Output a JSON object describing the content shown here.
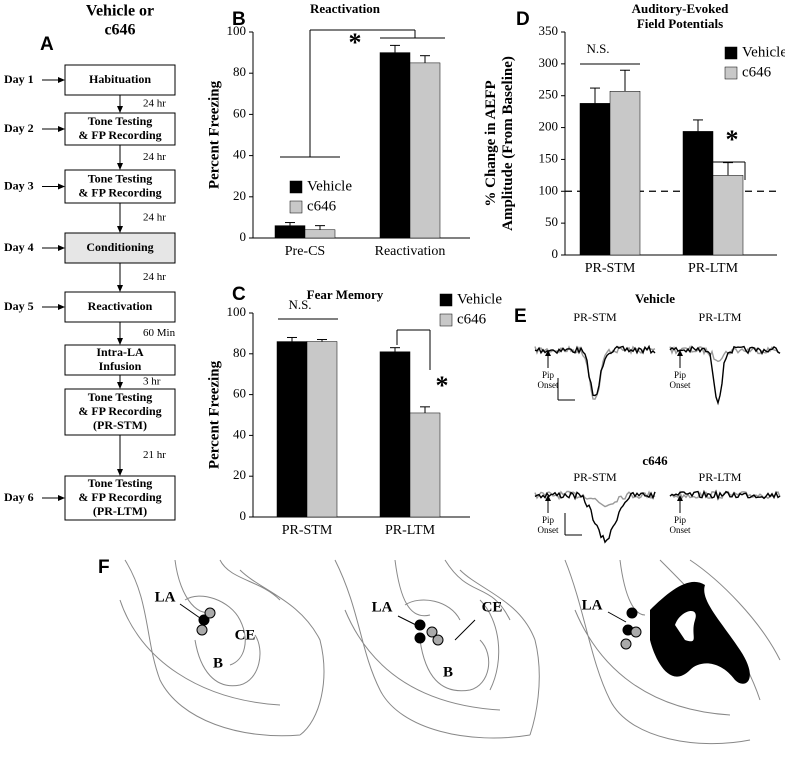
{
  "chart_data": [
    {
      "type": "bar",
      "letter": "B",
      "title": [
        "Reactivation"
      ],
      "y_label": [
        "Percent Freezing"
      ],
      "categories": [
        "Pre-CS",
        "Reactivation"
      ],
      "series": [
        {
          "name": "Vehicle",
          "color": "#000000",
          "values": [
            6,
            90
          ],
          "errors": [
            1.5,
            3.5
          ]
        },
        {
          "name": "c646",
          "color": "#c8c8c8",
          "values": [
            4,
            85
          ],
          "errors": [
            2,
            3.5
          ]
        }
      ],
      "ylim": [
        0,
        100
      ],
      "yticks": [
        0,
        20,
        40,
        60,
        80,
        100
      ],
      "annotations": [
        "*"
      ]
    },
    {
      "type": "bar",
      "letter": "C",
      "title": [
        "Fear Memory"
      ],
      "y_label": [
        "Percent Freezing"
      ],
      "categories": [
        "PR-STM",
        "PR-LTM"
      ],
      "series": [
        {
          "name": "Vehicle",
          "color": "#000000",
          "values": [
            86,
            81
          ],
          "errors": [
            2,
            2
          ]
        },
        {
          "name": "c646",
          "color": "#c8c8c8",
          "values": [
            86,
            51
          ],
          "errors": [
            1,
            3
          ]
        }
      ],
      "ylim": [
        0,
        100
      ],
      "yticks": [
        0,
        20,
        40,
        60,
        80,
        100
      ],
      "annotations": [
        "N.S.",
        "*"
      ]
    },
    {
      "type": "bar",
      "letter": "D",
      "title": [
        "Auditory-Evoked",
        "Field Potentials"
      ],
      "y_label": [
        "% Change in AEFP",
        "Amplitude (From Baseline)"
      ],
      "categories": [
        "PR-STM",
        "PR-LTM"
      ],
      "series": [
        {
          "name": "Vehicle",
          "color": "#000000",
          "values": [
            238,
            194
          ],
          "errors": [
            24,
            18
          ]
        },
        {
          "name": "c646",
          "color": "#c8c8c8",
          "values": [
            257,
            125
          ],
          "errors": [
            33,
            20
          ]
        }
      ],
      "ylim": [
        0,
        350
      ],
      "yticks": [
        0,
        50,
        100,
        150,
        200,
        250,
        300,
        350
      ],
      "reference_line": 100,
      "annotations": [
        "N.S.",
        "*"
      ]
    }
  ],
  "flowchart": {
    "letter": "A",
    "title": [
      "Vehicle or",
      "c646"
    ],
    "steps": [
      {
        "day": "Day 1",
        "lines": [
          "Habituation"
        ]
      },
      {
        "day": "Day 2",
        "lines": [
          "Tone Testing",
          "& FP Recording"
        ]
      },
      {
        "day": "Day 3",
        "lines": [
          "Tone Testing",
          "& FP Recording"
        ]
      },
      {
        "day": "Day 4",
        "lines": [
          "Conditioning"
        ]
      },
      {
        "day": "Day 5",
        "lines": [
          "Reactivation"
        ]
      },
      {
        "lines": [
          "Intra-LA",
          "Infusion"
        ]
      },
      {
        "lines": [
          "Tone Testing",
          "& FP Recording",
          "(PR-STM)"
        ]
      },
      {
        "day": "Day 6",
        "lines": [
          "Tone Testing",
          "& FP Recording",
          "(PR-LTM)"
        ]
      }
    ],
    "intervals": [
      "24 hr",
      "24 hr",
      "24 hr",
      "24 hr",
      "60 Min",
      "3 hr",
      "21 hr"
    ]
  },
  "traces": {
    "letter": "E",
    "groups": [
      {
        "name": "Vehicle",
        "sessions": [
          "PR-STM",
          "PR-LTM"
        ]
      },
      {
        "name": "c646",
        "sessions": [
          "PR-STM",
          "PR-LTM"
        ]
      }
    ],
    "onset": [
      "Pip",
      "Onset"
    ]
  },
  "anatomy": {
    "letter": "F",
    "sections": [
      {
        "labels": [
          "LA",
          "CE",
          "B"
        ]
      },
      {
        "labels": [
          "LA",
          "CE",
          "B"
        ]
      },
      {
        "labels": [
          "LA"
        ]
      }
    ]
  }
}
